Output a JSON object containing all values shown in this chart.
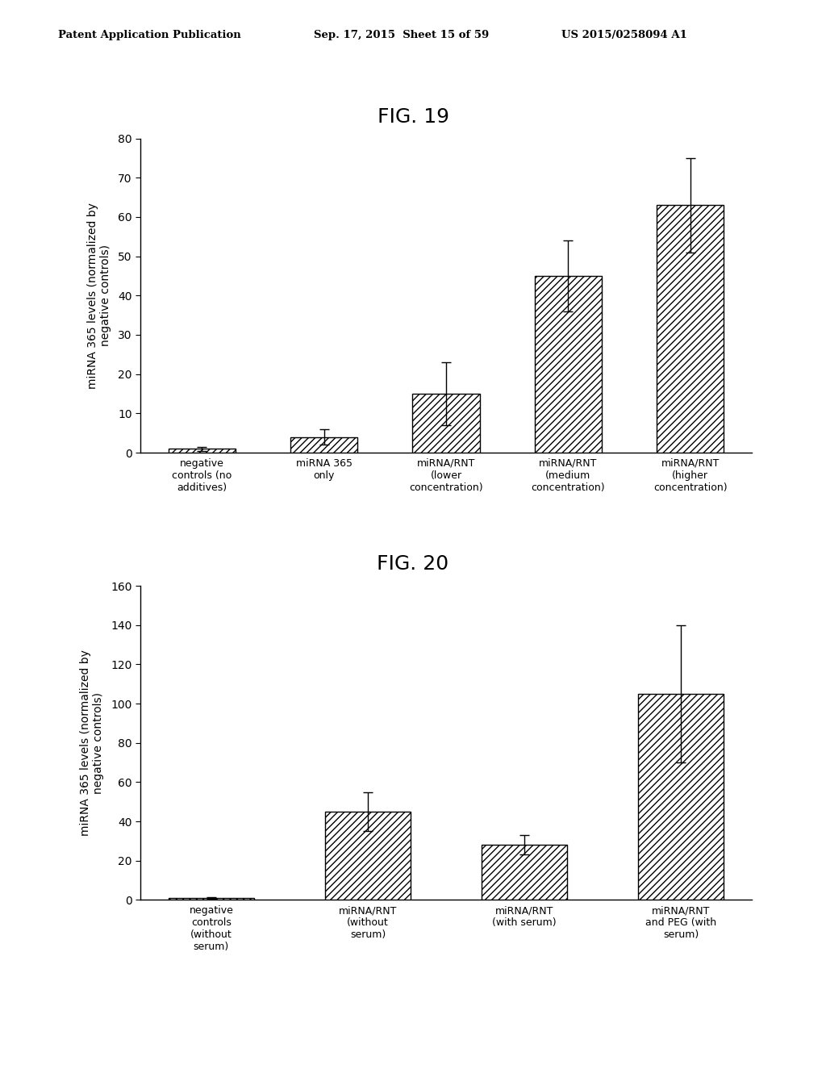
{
  "fig19": {
    "title": "FIG. 19",
    "categories": [
      "negative\ncontrols (no\nadditives)",
      "miRNA 365\nonly",
      "miRNA/RNT\n(lower\nconcentration)",
      "miRNA/RNT\n(medium\nconcentration)",
      "miRNA/RNT\n(higher\nconcentration)"
    ],
    "values": [
      1.0,
      4.0,
      15.0,
      45.0,
      63.0
    ],
    "errors": [
      0.5,
      2.0,
      8.0,
      9.0,
      12.0
    ],
    "ylabel": "miRNA 365 levels (normalized by\nnegative controls)",
    "ylim": [
      0,
      80
    ],
    "yticks": [
      0,
      10,
      20,
      30,
      40,
      50,
      60,
      70,
      80
    ]
  },
  "fig20": {
    "title": "FIG. 20",
    "categories": [
      "negative\ncontrols\n(without\nserum)",
      "miRNA/RNT\n(without\nserum)",
      "miRNA/RNT\n(with serum)",
      "miRNA/RNT\nand PEG (with\nserum)"
    ],
    "values": [
      1.0,
      45.0,
      28.0,
      105.0
    ],
    "errors": [
      0.5,
      10.0,
      5.0,
      35.0
    ],
    "ylabel": "miRNA 365 levels (normalized by\nnegative controls)",
    "ylim": [
      0,
      160
    ],
    "yticks": [
      0,
      20,
      40,
      60,
      80,
      100,
      120,
      140,
      160
    ]
  },
  "bar_color": "#ffffff",
  "bar_edgecolor": "#000000",
  "hatch_pattern": "////",
  "background_color": "#ffffff",
  "header_left": "Patent Application Publication",
  "header_center": "Sep. 17, 2015  Sheet 15 of 59",
  "header_right": "US 2015/0258094 A1",
  "title_fontsize": 18,
  "ylabel_fontsize": 10,
  "tick_fontsize": 10,
  "xtick_fontsize": 9
}
